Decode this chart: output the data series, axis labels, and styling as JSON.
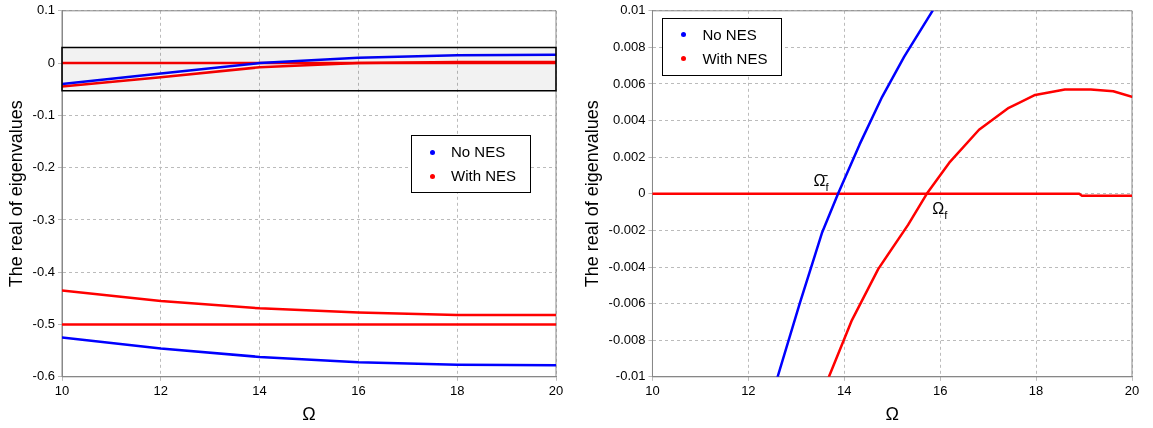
{
  "chart_data": [
    {
      "type": "line",
      "xlabel": "Ω",
      "ylabel": "The real of eigenvalues",
      "xlim": [
        10,
        20
      ],
      "xticks": [
        10,
        12,
        14,
        16,
        18,
        20
      ],
      "ylim": [
        -0.6,
        0.1
      ],
      "yticks": [
        -0.6,
        -0.5,
        -0.4,
        -0.3,
        -0.2,
        -0.1,
        0,
        0.1
      ],
      "grid": true,
      "legend": "right",
      "line_style": "solid",
      "bands": [
        {
          "axis": "y",
          "from": -0.053,
          "to": 0.03,
          "color": "#000000"
        }
      ],
      "series": [
        {
          "name": "No NES",
          "color": "#0000ff",
          "x": [
            10,
            12,
            14,
            16,
            18,
            20
          ],
          "values": [
            -0.04,
            -0.02,
            0,
            0.01,
            0.015,
            0.016
          ]
        },
        {
          "name": "With NES",
          "color": "#ff0000",
          "x": [
            10,
            12,
            14,
            16,
            18,
            20
          ],
          "values": [
            -0.045,
            -0.027,
            -0.008,
            0,
            0.002,
            0.002
          ]
        },
        {
          "color": "#ff0000",
          "x": [
            10,
            20
          ],
          "values": [
            0,
            0
          ]
        },
        {
          "color": "#ff0000",
          "x": [
            10,
            12,
            14,
            16,
            18,
            20
          ],
          "values": [
            -0.435,
            -0.455,
            -0.469,
            -0.477,
            -0.482,
            -0.482
          ]
        },
        {
          "color": "#ff0000",
          "x": [
            10,
            20
          ],
          "values": [
            -0.5,
            -0.5
          ]
        },
        {
          "color": "#0000ff",
          "x": [
            10,
            12,
            14,
            16,
            18,
            20
          ],
          "values": [
            -0.525,
            -0.546,
            -0.562,
            -0.572,
            -0.577,
            -0.578
          ]
        }
      ]
    },
    {
      "type": "line",
      "xlabel": "Ω",
      "ylabel": "The real of eigenvalues",
      "xlim": [
        10,
        20
      ],
      "xticks": [
        10,
        12,
        14,
        16,
        18,
        20
      ],
      "ylim": [
        -0.01,
        0.01
      ],
      "yticks": [
        -0.01,
        -0.008,
        -0.006,
        -0.004,
        -0.002,
        0,
        0.002,
        0.004,
        0.006,
        0.008,
        0.01
      ],
      "grid": true,
      "legend": "top left",
      "line_style": "solid",
      "annotations": [
        {
          "text": "Ω̄$_{f}$",
          "x": 13.9,
          "y": 0
        },
        {
          "text": "Ω$_{f}$",
          "x": 15.75,
          "y": 0
        }
      ],
      "series": [
        {
          "name": "No NES",
          "color": "#0000ff",
          "x": [
            12.61,
            13.07,
            13.54,
            13.87,
            14.32,
            14.79,
            15.25,
            15.84
          ],
          "values": [
            -0.01,
            -0.006,
            -0.0021,
            0,
            0.0027,
            0.0053,
            0.0075,
            0.01
          ]
        },
        {
          "name": "With NES",
          "color": "#ff0000",
          "x": [
            13.68,
            14.16,
            14.71,
            15.33,
            15.72,
            16.19,
            16.81,
            17.43,
            17.98,
            18.6,
            19.14,
            19.61,
            20
          ],
          "values": [
            -0.01,
            -0.0069,
            -0.0041,
            -0.0017,
            0,
            0.0017,
            0.0035,
            0.0047,
            0.0054,
            0.0057,
            0.0057,
            0.0056,
            0.0053
          ]
        },
        {
          "color": "#ff0000",
          "x": [
            10,
            18.9,
            18.95,
            20
          ],
          "values": [
            0,
            0,
            -0.0001,
            -0.0001
          ]
        }
      ]
    }
  ]
}
